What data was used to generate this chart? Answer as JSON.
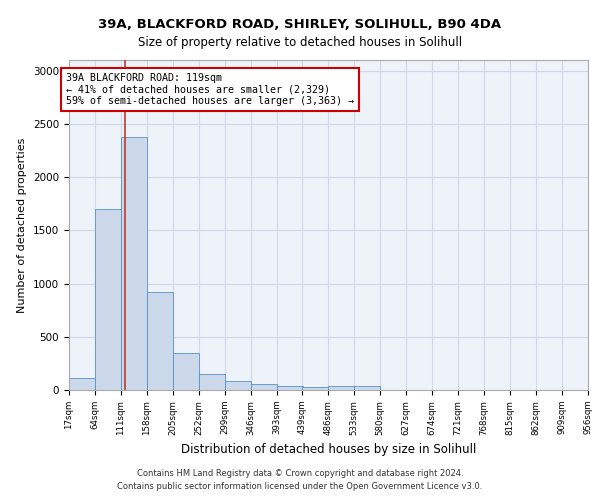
{
  "title_line1": "39A, BLACKFORD ROAD, SHIRLEY, SOLIHULL, B90 4DA",
  "title_line2": "Size of property relative to detached houses in Solihull",
  "xlabel": "Distribution of detached houses by size in Solihull",
  "ylabel": "Number of detached properties",
  "bin_edges": [
    17,
    64,
    111,
    158,
    205,
    252,
    299,
    346,
    393,
    439,
    486,
    533,
    580,
    627,
    674,
    721,
    768,
    815,
    862,
    909,
    956
  ],
  "bar_heights": [
    110,
    1700,
    2380,
    920,
    350,
    150,
    80,
    60,
    35,
    30,
    35,
    35,
    0,
    0,
    0,
    0,
    0,
    0,
    0,
    0
  ],
  "bar_color": "#ccd9ea",
  "bar_edge_color": "#5b8fc9",
  "property_line_x": 119,
  "annotation_text": "39A BLACKFORD ROAD: 119sqm\n← 41% of detached houses are smaller (2,329)\n59% of semi-detached houses are larger (3,363) →",
  "annotation_box_color": "#ffffff",
  "annotation_box_edge_color": "#cc0000",
  "vline_color": "#c0392b",
  "grid_color": "#d0d8e8",
  "background_color": "#eef2f9",
  "footer_line1": "Contains HM Land Registry data © Crown copyright and database right 2024.",
  "footer_line2": "Contains public sector information licensed under the Open Government Licence v3.0.",
  "ylim": [
    0,
    3100
  ],
  "yticks": [
    0,
    500,
    1000,
    1500,
    2000,
    2500,
    3000
  ]
}
